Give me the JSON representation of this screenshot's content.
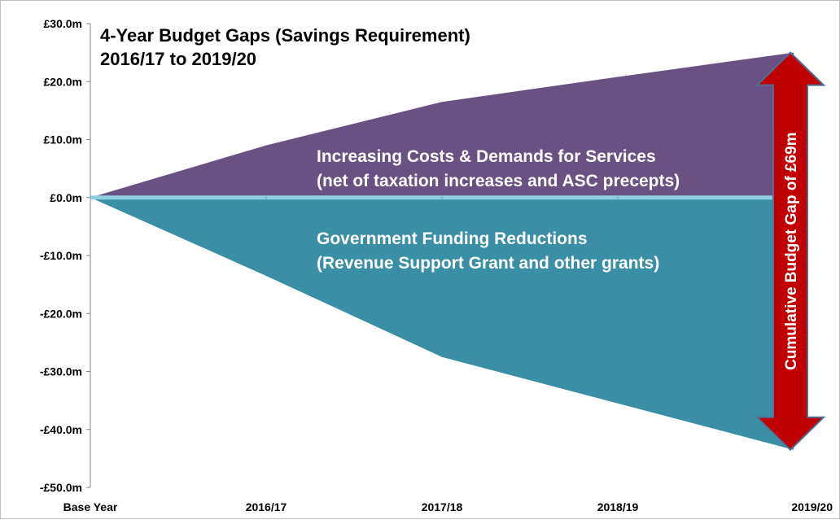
{
  "chart_data": {
    "type": "area",
    "title": "4-Year Budget Gaps (Savings Requirement)",
    "subtitle": "2016/17 to 2019/20",
    "categories": [
      "Base Year",
      "2016/17",
      "2017/18",
      "2018/19",
      "2019/20"
    ],
    "series": [
      {
        "values": [
          0,
          9,
          16.5,
          20.8,
          25
        ],
        "color": "#6a5183"
      },
      {
        "values": [
          0,
          -13.5,
          -27.5,
          -35.5,
          -43.5
        ],
        "color": "#3a8fa6"
      }
    ],
    "ylim": [
      -50,
      30
    ],
    "yticks": [
      {
        "value": 30,
        "label": "£30.0m"
      },
      {
        "value": 20,
        "label": "£20.0m"
      },
      {
        "value": 10,
        "label": "£10.0m"
      },
      {
        "value": 0,
        "label": "£0.0m"
      },
      {
        "value": -10,
        "label": "-£10.0m"
      },
      {
        "value": -20,
        "label": "-£20.0m"
      },
      {
        "value": -30,
        "label": "-£30.0m"
      },
      {
        "value": -40,
        "label": "-£40.0m"
      },
      {
        "value": -50,
        "label": "-£50.0m"
      }
    ],
    "grid": false,
    "zero_line_color": "#8fcde0",
    "annotations": [
      {
        "series": 0,
        "lines": [
          "Increasing Costs & Demands for Services",
          "(net of taxation increases and ASC precepts)"
        ]
      },
      {
        "series": 1,
        "lines": [
          "Government Funding Reductions",
          "(Revenue Support Grant and other grants)"
        ]
      }
    ],
    "gap_arrow": {
      "label": "Cumulative Budget Gap of £69m",
      "from": -43.5,
      "to": 25,
      "color": "#c00000",
      "outline": "#4f6f95"
    }
  }
}
